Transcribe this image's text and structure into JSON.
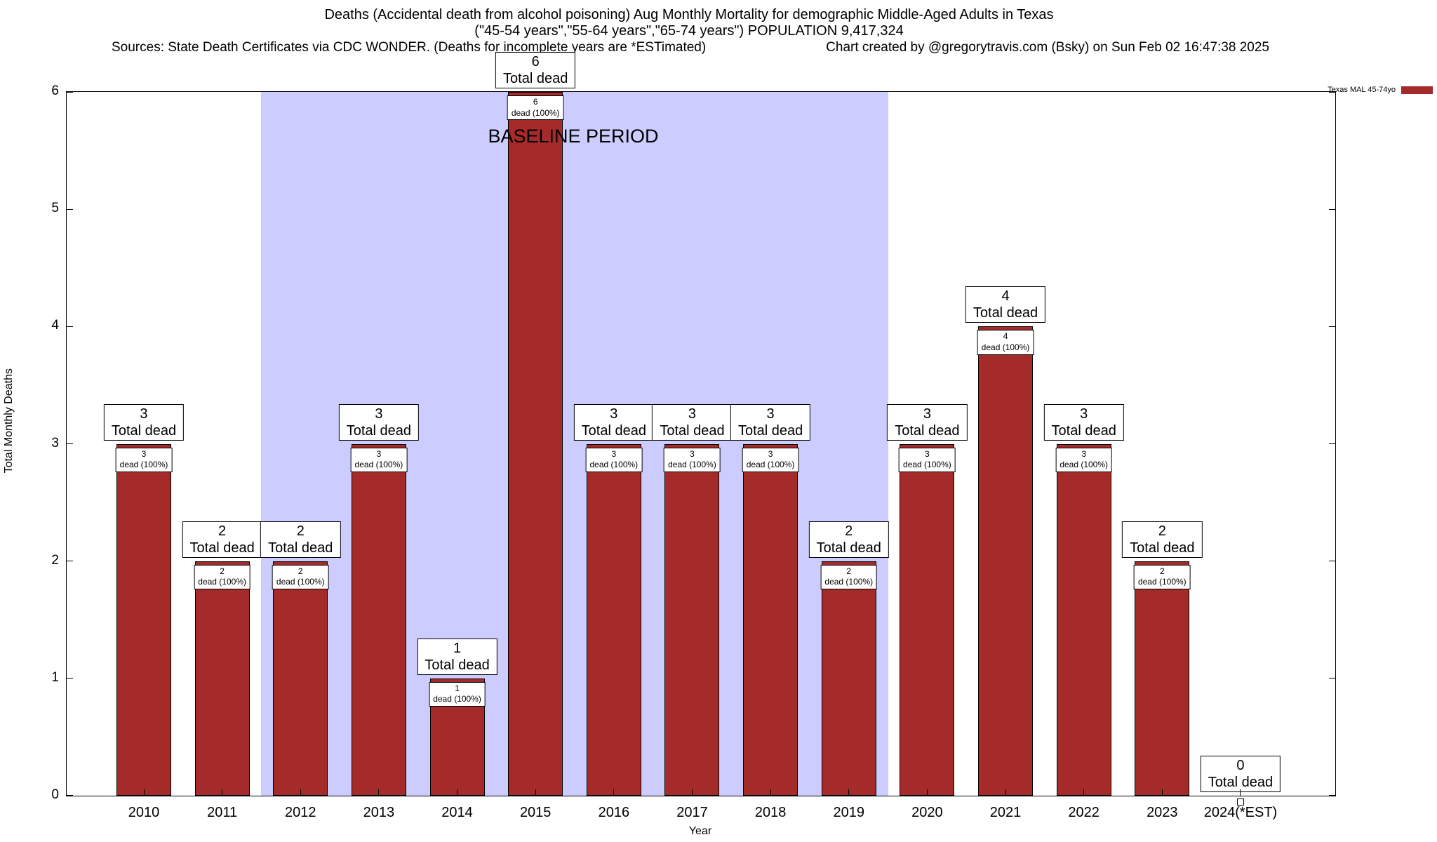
{
  "header": {
    "title_line1": "Deaths (Accidental death from alcohol poisoning) Aug Monthly Mortality for demographic Middle-Aged Adults in Texas",
    "title_line2": "(\"45-54 years\",\"55-64 years\",\"65-74 years\") POPULATION 9,417,324",
    "sources": "Sources: State Death Certificates via CDC WONDER. (Deaths for incomplete years are *ESTimated)",
    "credit": "Chart created by @gregorytravis.com (Bsky) on Sun Feb 02 16:47:38 2025"
  },
  "chart_data": {
    "type": "bar",
    "title": "Deaths (Accidental death from alcohol poisoning) Aug Monthly Mortality for demographic Middle-Aged Adults in Texas",
    "xlabel": "Year",
    "ylabel": "Total Monthly Deaths",
    "ylim": [
      0,
      6
    ],
    "yticks": [
      0,
      1,
      2,
      3,
      4,
      5,
      6
    ],
    "grid": false,
    "categories": [
      "2010",
      "2011",
      "2012",
      "2013",
      "2014",
      "2015",
      "2016",
      "2017",
      "2018",
      "2019",
      "2020",
      "2021",
      "2022",
      "2023",
      "2024(*EST)"
    ],
    "values": [
      3,
      2,
      2,
      3,
      1,
      6,
      3,
      3,
      3,
      2,
      3,
      4,
      3,
      2,
      0
    ],
    "bar_color": "#A52A2A",
    "annotation_top_suffix": "Total dead",
    "annotation_inner_suffix": "dead (100%)",
    "baseline": {
      "label": "BASELINE PERIOD",
      "start_index": 2,
      "end_index": 9,
      "color": "#CCCCFF"
    },
    "legend": {
      "label": "Texas MAL 45-74yo",
      "color": "#A52A2A",
      "position": "top-right-outside"
    }
  }
}
